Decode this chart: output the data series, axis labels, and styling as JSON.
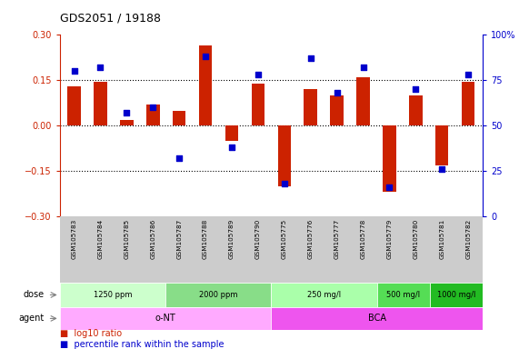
{
  "title": "GDS2051 / 19188",
  "samples": [
    "GSM105783",
    "GSM105784",
    "GSM105785",
    "GSM105786",
    "GSM105787",
    "GSM105788",
    "GSM105789",
    "GSM105790",
    "GSM105775",
    "GSM105776",
    "GSM105777",
    "GSM105778",
    "GSM105779",
    "GSM105780",
    "GSM105781",
    "GSM105782"
  ],
  "log10_ratio": [
    0.13,
    0.145,
    0.02,
    0.07,
    0.05,
    0.265,
    -0.05,
    0.14,
    -0.2,
    0.12,
    0.1,
    0.16,
    -0.22,
    0.1,
    -0.13,
    0.145
  ],
  "percentile_rank": [
    80,
    82,
    57,
    60,
    32,
    88,
    38,
    78,
    18,
    87,
    68,
    82,
    16,
    70,
    26,
    78
  ],
  "ylim": [
    -0.3,
    0.3
  ],
  "yticks_left": [
    -0.3,
    -0.15,
    0.0,
    0.15,
    0.3
  ],
  "yticks_right": [
    0,
    25,
    50,
    75,
    100
  ],
  "hlines": [
    -0.15,
    0.0,
    0.15
  ],
  "bar_color": "#cc2200",
  "dot_color": "#0000cc",
  "bar_width": 0.5,
  "dot_size": 18,
  "doses": [
    {
      "label": "1250 ppm",
      "start": 0,
      "end": 4,
      "color": "#ccffcc"
    },
    {
      "label": "2000 ppm",
      "start": 4,
      "end": 8,
      "color": "#88dd88"
    },
    {
      "label": "250 mg/l",
      "start": 8,
      "end": 12,
      "color": "#aaffaa"
    },
    {
      "label": "500 mg/l",
      "start": 12,
      "end": 14,
      "color": "#55dd55"
    },
    {
      "label": "1000 mg/l",
      "start": 14,
      "end": 16,
      "color": "#22bb22"
    }
  ],
  "agents": [
    {
      "label": "o-NT",
      "start": 0,
      "end": 8,
      "color": "#ffaaff"
    },
    {
      "label": "BCA",
      "start": 8,
      "end": 16,
      "color": "#ee55ee"
    }
  ],
  "legend_bar_color": "#cc2200",
  "legend_dot_color": "#0000cc",
  "legend_bar_label": "log10 ratio",
  "legend_dot_label": "percentile rank within the sample",
  "left_axis_color": "#cc2200",
  "right_axis_color": "#0000cc",
  "bg_color": "#ffffff",
  "label_area_bg": "#cccccc"
}
